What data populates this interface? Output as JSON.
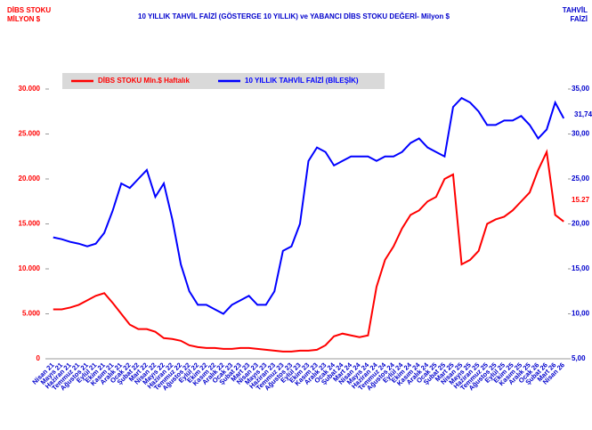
{
  "chart_data": {
    "type": "line",
    "title": "10 YILLIK TAHVİL FAİZİ (GÖSTERGE 10 YILLIK) ve YABANCI DİBS STOKU DEĞERİ- Milyon $",
    "y_label": [
      "DİBS STOKU",
      "MİLYON $"
    ],
    "y2_label": [
      "TAHVİL",
      "FAİZİ"
    ],
    "categories": [
      "Nisan 21",
      "Mayıs 21",
      "Haziran 21",
      "Temmuz 21",
      "Ağustos 21",
      "Eylül 21",
      "Ekim 21",
      "Kasım 21",
      "Aralık 21",
      "Ocak 22",
      "Şubat 22",
      "Mart 22",
      "Nisan 22",
      "Mayıs 22",
      "Haziran 22",
      "Temmuz 22",
      "Ağustos 22",
      "Eylül 22",
      "Ekim 22",
      "Kasım 22",
      "Aralık 22",
      "Ocak 23",
      "Şubat 23",
      "Mart 23",
      "Nisan 23",
      "Mayıs 23",
      "Haziran 23",
      "Temmuz 23",
      "Ağustos 23",
      "Eylül 23",
      "Ekim 23",
      "Kasım 23",
      "Aralık 23",
      "Ocak 24",
      "Şubat 24",
      "Mart 24",
      "Nisan 24",
      "Mayıs 24",
      "Haziran 24",
      "Temmuz 24",
      "Ağustos 24",
      "Eylül 24",
      "Ekim 24",
      "Kasım 24",
      "Aralık 24",
      "Ocak 25",
      "Şubat 25",
      "Mart 25",
      "Nisan 25",
      "Mayıs 25",
      "Haziran 25",
      "Temmuz 25",
      "Ağustos 25",
      "Eylül 25",
      "Ekim 25",
      "Kasım 25",
      "Aralık 25",
      "Ocak 26",
      "Şubat 26",
      "Mart 26",
      "Nisan 26"
    ],
    "series": [
      {
        "name": "DİBS STOKU Mln.$ Haftalık",
        "color": "#ff0000",
        "axis": "y",
        "values": [
          5500,
          5500,
          5700,
          6000,
          6500,
          7000,
          7300,
          6200,
          5000,
          3800,
          3300,
          3300,
          3000,
          2300,
          2200,
          2000,
          1500,
          1300,
          1200,
          1200,
          1100,
          1100,
          1200,
          1200,
          1100,
          1000,
          900,
          800,
          800,
          900,
          900,
          1000,
          1500,
          2500,
          2800,
          2600,
          2400,
          2600,
          8000,
          11000,
          12500,
          14500,
          16000,
          16500,
          17500,
          18000,
          20000,
          20500,
          10500,
          11000,
          12000,
          15000,
          15500,
          15800,
          16500,
          17500,
          18500,
          21000,
          23000,
          16000,
          15270
        ]
      },
      {
        "name": "10 YILLIK TAHVİL FAİZİ (BİLEŞİK)",
        "color": "#0000ff",
        "axis": "y2",
        "values": [
          18.5,
          18.3,
          18.0,
          17.8,
          17.5,
          17.8,
          19.0,
          21.5,
          24.5,
          24,
          25,
          26,
          23,
          24.5,
          20.5,
          15.5,
          12.5,
          11,
          11,
          10.5,
          10,
          11,
          11.5,
          12,
          11,
          11,
          12.5,
          17,
          17.5,
          20,
          27,
          28.5,
          28,
          26.5,
          27,
          27.5,
          27.5,
          27.5,
          27,
          27.5,
          27.5,
          28,
          29,
          29.5,
          28.5,
          28,
          27.5,
          33,
          34,
          33.5,
          32.5,
          31,
          31,
          31.5,
          31.5,
          32,
          31,
          29.5,
          30.5,
          33.5,
          31.74
        ]
      }
    ],
    "annotations": [
      "15.27",
      "31,74"
    ],
    "ylim": [
      0,
      30000
    ],
    "yticks": [
      0,
      {
        "value": 5000,
        "label": "5.000"
      },
      {
        "value": 10000,
        "label": "10.000"
      },
      {
        "value": 15000,
        "label": "15.000"
      },
      {
        "value": 20000,
        "label": "20.000"
      },
      {
        "value": 25000,
        "label": "25.000"
      },
      {
        "value": 30000,
        "label": "30.000"
      }
    ],
    "y2lim": [
      5,
      35
    ],
    "y2ticks": [
      {
        "value": 5,
        "label": "5,00"
      },
      {
        "value": 10,
        "label": "10,00"
      },
      {
        "value": 15,
        "label": "15,00"
      },
      {
        "value": 20,
        "label": "20,00"
      },
      {
        "value": 25,
        "label": "25,00"
      },
      {
        "value": 30,
        "label": "30,00"
      },
      {
        "value": 35,
        "label": "35,00"
      }
    ],
    "legend": "top"
  }
}
